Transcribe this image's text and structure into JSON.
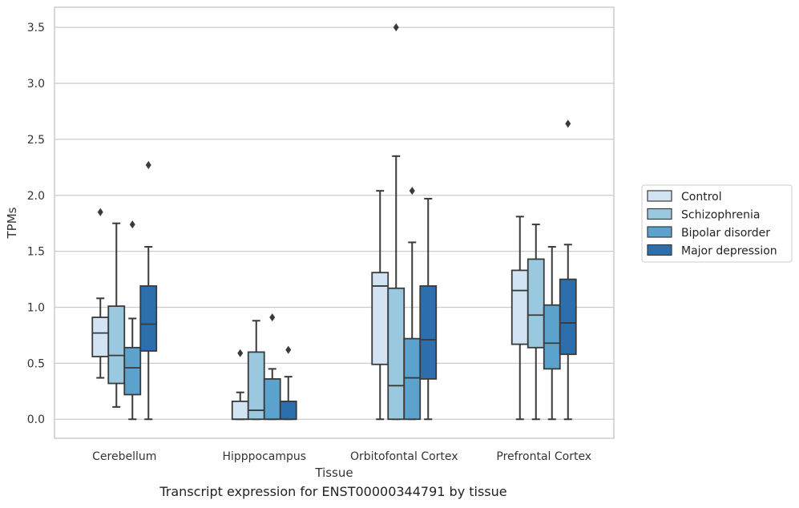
{
  "caption": "Transcript expression for ENST00000344791 by tissue",
  "chart_data": {
    "type": "boxplot",
    "xlabel": "Tissue",
    "ylabel": "TPMs",
    "ylim": [
      -0.17,
      3.68
    ],
    "yticks": [
      "0.0",
      "0.5",
      "1.0",
      "1.5",
      "2.0",
      "2.5",
      "3.0",
      "3.5"
    ],
    "categories": [
      "Cerebellum",
      "Hipppocampus",
      "Orbitofontal Cortex",
      "Prefrontal Cortex"
    ],
    "grid": true,
    "legend_position": "right",
    "series": [
      {
        "name": "Control",
        "color": "#d2e3f3",
        "boxes": [
          {
            "whisker_low": 0.37,
            "q1": 0.56,
            "median": 0.77,
            "q3": 0.91,
            "whisker_high": 1.08,
            "outliers": [
              1.85
            ]
          },
          {
            "whisker_low": 0.0,
            "q1": 0.0,
            "median": 0.0,
            "q3": 0.16,
            "whisker_high": 0.24,
            "outliers": [
              0.59
            ]
          },
          {
            "whisker_low": 0.0,
            "q1": 0.49,
            "median": 1.19,
            "q3": 1.31,
            "whisker_high": 2.04,
            "outliers": []
          },
          {
            "whisker_low": 0.0,
            "q1": 0.67,
            "median": 1.15,
            "q3": 1.33,
            "whisker_high": 1.81,
            "outliers": []
          }
        ]
      },
      {
        "name": "Schizophrenia",
        "color": "#9ac8df",
        "boxes": [
          {
            "whisker_low": 0.11,
            "q1": 0.32,
            "median": 0.57,
            "q3": 1.01,
            "whisker_high": 1.75,
            "outliers": []
          },
          {
            "whisker_low": 0.0,
            "q1": 0.0,
            "median": 0.08,
            "q3": 0.6,
            "whisker_high": 0.88,
            "outliers": []
          },
          {
            "whisker_low": 0.0,
            "q1": 0.0,
            "median": 0.3,
            "q3": 1.17,
            "whisker_high": 2.35,
            "outliers": [
              3.5
            ]
          },
          {
            "whisker_low": 0.0,
            "q1": 0.64,
            "median": 0.93,
            "q3": 1.43,
            "whisker_high": 1.74,
            "outliers": []
          }
        ]
      },
      {
        "name": "Bipolar disorder",
        "color": "#5ba2cd",
        "boxes": [
          {
            "whisker_low": 0.0,
            "q1": 0.22,
            "median": 0.46,
            "q3": 0.64,
            "whisker_high": 0.9,
            "outliers": [
              1.74
            ]
          },
          {
            "whisker_low": 0.0,
            "q1": 0.0,
            "median": 0.0,
            "q3": 0.36,
            "whisker_high": 0.45,
            "outliers": [
              0.91
            ]
          },
          {
            "whisker_low": 0.0,
            "q1": 0.0,
            "median": 0.37,
            "q3": 0.72,
            "whisker_high": 1.58,
            "outliers": [
              2.04
            ]
          },
          {
            "whisker_low": 0.0,
            "q1": 0.45,
            "median": 0.68,
            "q3": 1.02,
            "whisker_high": 1.54,
            "outliers": []
          }
        ]
      },
      {
        "name": "Major depression",
        "color": "#2c6fac",
        "boxes": [
          {
            "whisker_low": 0.0,
            "q1": 0.61,
            "median": 0.85,
            "q3": 1.19,
            "whisker_high": 1.54,
            "outliers": [
              2.27
            ]
          },
          {
            "whisker_low": 0.0,
            "q1": 0.0,
            "median": 0.0,
            "q3": 0.16,
            "whisker_high": 0.38,
            "outliers": [
              0.62
            ]
          },
          {
            "whisker_low": 0.0,
            "q1": 0.36,
            "median": 0.71,
            "q3": 1.19,
            "whisker_high": 1.97,
            "outliers": []
          },
          {
            "whisker_low": 0.0,
            "q1": 0.58,
            "median": 0.86,
            "q3": 1.25,
            "whisker_high": 1.56,
            "outliers": [
              2.64
            ]
          }
        ]
      }
    ]
  }
}
